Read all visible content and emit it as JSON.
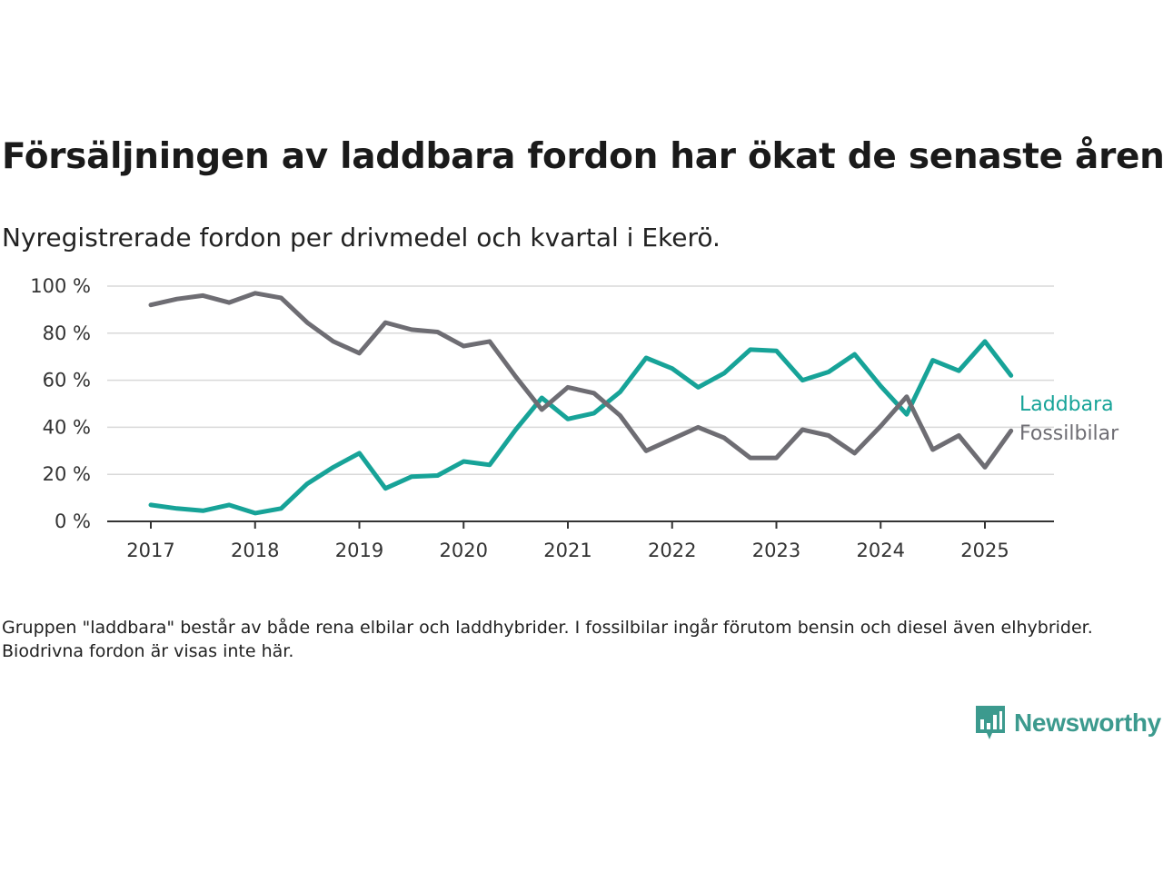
{
  "title": "Försäljningen av laddbara fordon har ökat de senaste åren",
  "subtitle": "Nyregistrerade fordon per drivmedel och kvartal i Ekerö.",
  "footnote": "Gruppen \"laddbara\" består av både rena elbilar och laddhybrider. I fossilbilar ingår förutom bensin och diesel även elhybrider. Biodrivna fordon är visas inte här.",
  "brand": {
    "name": "Newsworthy",
    "icon": "newsworthy-logo-icon",
    "color": "#3c9a8e"
  },
  "chart_data": {
    "type": "line",
    "title": "Försäljningen av laddbara fordon har ökat de senaste åren",
    "subtitle": "Nyregistrerade fordon per drivmedel och kvartal i Ekerö.",
    "xlabel": "",
    "ylabel": "",
    "ylim": [
      0,
      100
    ],
    "y_ticks": [
      0,
      20,
      40,
      60,
      80,
      100
    ],
    "y_tick_labels": [
      "0 %",
      "20 %",
      "40 %",
      "60 %",
      "80 %",
      "100 %"
    ],
    "x_ticks": [
      2017,
      2018,
      2019,
      2020,
      2021,
      2022,
      2023,
      2024,
      2025
    ],
    "x_tick_labels": [
      "2017",
      "2018",
      "2019",
      "2020",
      "2021",
      "2022",
      "2023",
      "2024",
      "2025"
    ],
    "grid": true,
    "legend": "inline labels at end of lines, right",
    "x": [
      2017.0,
      2017.25,
      2017.5,
      2017.75,
      2018.0,
      2018.25,
      2018.5,
      2018.75,
      2019.0,
      2019.25,
      2019.5,
      2019.75,
      2020.0,
      2020.25,
      2020.5,
      2020.75,
      2021.0,
      2021.25,
      2021.5,
      2021.75,
      2022.0,
      2022.25,
      2022.5,
      2022.75,
      2023.0,
      2023.25,
      2023.5,
      2023.75,
      2024.0,
      2024.25,
      2024.5,
      2024.75,
      2025.0,
      2025.25
    ],
    "series": [
      {
        "name": "Laddbara",
        "color": "#17a398",
        "values": [
          7,
          5.5,
          4.5,
          7,
          3.5,
          5.5,
          16,
          23,
          29,
          14,
          19,
          19.5,
          25.5,
          24,
          39,
          52.5,
          43.5,
          46,
          55,
          69.5,
          65,
          57,
          63,
          73,
          72.5,
          60,
          63.5,
          71,
          57.5,
          45.5,
          68.5,
          64,
          76.5,
          62
        ]
      },
      {
        "name": "Fossilbilar",
        "color": "#6e6d73",
        "values": [
          92,
          94.5,
          96,
          93,
          97,
          95,
          84.5,
          76.5,
          71.5,
          84.5,
          81.5,
          80.5,
          74.5,
          76.5,
          61.5,
          47.5,
          57,
          54.5,
          45,
          30,
          35,
          40,
          35.5,
          27,
          27,
          39,
          36.5,
          29,
          40.5,
          53,
          30.5,
          36.5,
          23,
          38.5
        ]
      }
    ]
  }
}
